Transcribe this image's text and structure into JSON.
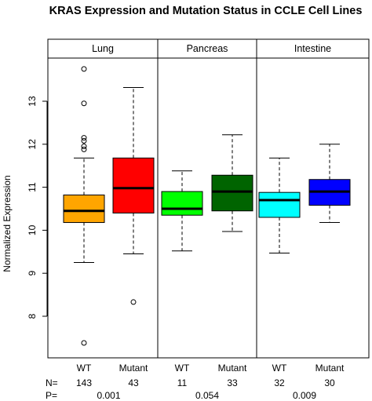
{
  "chart_data": {
    "type": "boxplot",
    "title": "KRAS Expression and Mutation Status in CCLE Cell Lines",
    "xlabel": "",
    "ylabel": "Normalized Expression",
    "ylim": [
      7.2,
      13.9
    ],
    "yticks": [
      8,
      9,
      10,
      11,
      12,
      13
    ],
    "grid": false,
    "legend": "none",
    "row_labels": {
      "n": "N=",
      "p": "P="
    },
    "panels": [
      {
        "name": "Lung",
        "p_value": "0.001",
        "groups": [
          {
            "label": "WT",
            "n": "143",
            "color": "#FFA500",
            "whisker_low": 9.25,
            "q1": 10.18,
            "median": 10.45,
            "q3": 10.82,
            "whisker_high": 11.68,
            "outliers": [
              13.75,
              12.95,
              12.15,
              12.08,
              11.95,
              11.88,
              7.38
            ]
          },
          {
            "label": "Mutant",
            "n": "43",
            "color": "#FF0000",
            "whisker_low": 9.45,
            "q1": 10.4,
            "median": 10.98,
            "q3": 11.68,
            "whisker_high": 13.32,
            "outliers": [
              8.33
            ]
          }
        ]
      },
      {
        "name": "Pancreas",
        "p_value": "0.054",
        "groups": [
          {
            "label": "WT",
            "n": "11",
            "color": "#00FF00",
            "whisker_low": 9.52,
            "q1": 10.35,
            "median": 10.5,
            "q3": 10.9,
            "whisker_high": 11.38,
            "outliers": []
          },
          {
            "label": "Mutant",
            "n": "33",
            "color": "#006400",
            "whisker_low": 9.97,
            "q1": 10.45,
            "median": 10.9,
            "q3": 11.28,
            "whisker_high": 12.22,
            "outliers": []
          }
        ]
      },
      {
        "name": "Intestine",
        "p_value": "0.009",
        "groups": [
          {
            "label": "WT",
            "n": "32",
            "color": "#00FFFF",
            "whisker_low": 9.47,
            "q1": 10.3,
            "median": 10.7,
            "q3": 10.88,
            "whisker_high": 11.68,
            "outliers": []
          },
          {
            "label": "Mutant",
            "n": "30",
            "color": "#0000FF",
            "whisker_low": 10.18,
            "q1": 10.58,
            "median": 10.9,
            "q3": 11.18,
            "whisker_high": 12.0,
            "outliers": []
          }
        ]
      }
    ]
  }
}
